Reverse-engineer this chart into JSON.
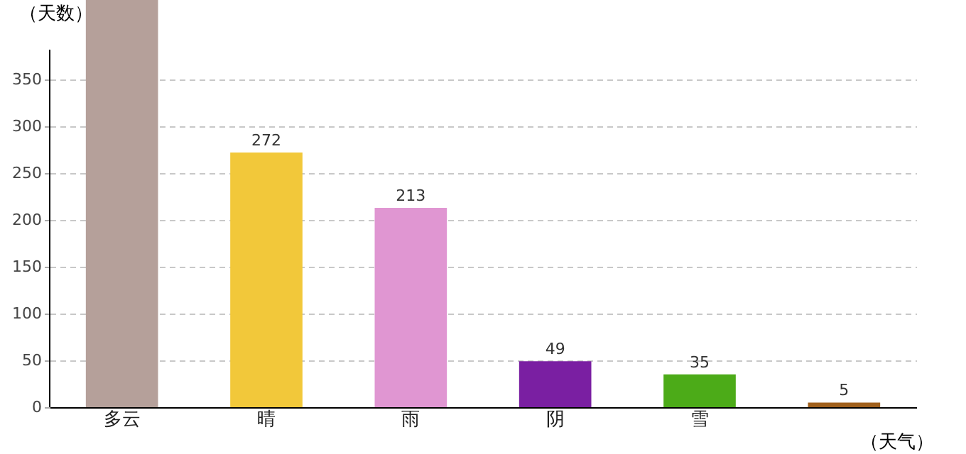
{
  "chart_data": {
    "type": "bar",
    "xlabel": "（天气）",
    "ylabel": "（天数）",
    "categories": [
      "多云",
      "晴",
      "雨",
      "阴",
      "雪",
      null
    ],
    "values": [
      435,
      272,
      213,
      49,
      35,
      5
    ],
    "colors": [
      "#b5a09a",
      "#f2c83a",
      "#e096d2",
      "#7a1fa2",
      "#4cab18",
      "#a0601c"
    ],
    "value_labels": [
      null,
      "272",
      "213",
      "49",
      "35",
      "5"
    ],
    "ylim": [
      0,
      435
    ],
    "yticks": [
      0,
      50,
      100,
      150,
      200,
      250,
      300,
      350
    ],
    "grid": "y"
  }
}
